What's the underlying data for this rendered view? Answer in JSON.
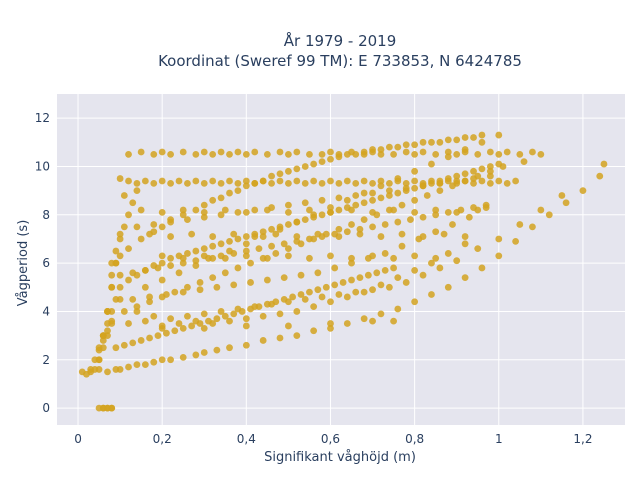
{
  "chart_data": {
    "type": "scatter",
    "title": "År 1979 - 2019",
    "subtitle": "Koordinat (Sweref 99 TM): E 733853, N 6424785",
    "xlabel": "Signifikant våghöjd (m)",
    "ylabel": "Vågperiod (s)",
    "xlim": [
      -0.05,
      1.3
    ],
    "ylim": [
      -0.7,
      13
    ],
    "xticks": [
      0,
      0.2,
      0.4,
      0.6,
      0.8,
      1,
      1.2
    ],
    "xtick_labels": [
      "0",
      "0,2",
      "0,4",
      "0,6",
      "0,8",
      "1",
      "1,2"
    ],
    "yticks": [
      0,
      2,
      4,
      6,
      8,
      10,
      12
    ],
    "ytick_labels": [
      "0",
      "2",
      "4",
      "6",
      "8",
      "10",
      "12"
    ],
    "grid": true,
    "legend": "none",
    "series": [
      {
        "color": "#d4a320",
        "x": [
          0.01,
          0.02,
          0.03,
          0.04,
          0.05,
          0.06,
          0.07,
          0.08,
          0.03,
          0.05,
          0.07,
          0.09,
          0.1,
          0.12,
          0.14,
          0.16,
          0.18,
          0.2,
          0.22,
          0.25,
          0.28,
          0.3,
          0.33,
          0.36,
          0.4,
          0.44,
          0.48,
          0.52,
          0.56,
          0.6,
          0.64,
          0.68,
          0.72,
          0.76,
          0.8,
          0.84,
          0.88,
          0.92,
          0.96,
          1.0,
          1.04,
          1.08,
          1.12,
          1.16,
          1.2,
          1.24,
          1.25,
          0.05,
          0.06,
          0.07,
          0.08,
          0.09,
          0.1,
          0.12,
          0.14,
          0.16,
          0.18,
          0.2,
          0.22,
          0.24,
          0.26,
          0.28,
          0.3,
          0.32,
          0.34,
          0.36,
          0.38,
          0.4,
          0.42,
          0.44,
          0.46,
          0.48,
          0.5,
          0.52,
          0.54,
          0.56,
          0.58,
          0.6,
          0.62,
          0.64,
          0.66,
          0.68,
          0.7,
          0.72,
          0.74,
          0.76,
          0.78,
          0.8,
          0.82,
          0.84,
          0.86,
          0.88,
          0.9,
          0.92,
          0.94,
          0.96,
          0.98,
          1.0,
          0.08,
          0.1,
          0.12,
          0.15,
          0.18,
          0.2,
          0.22,
          0.25,
          0.28,
          0.3,
          0.32,
          0.34,
          0.36,
          0.38,
          0.4,
          0.42,
          0.44,
          0.46,
          0.48,
          0.5,
          0.52,
          0.54,
          0.56,
          0.58,
          0.6,
          0.62,
          0.64,
          0.66,
          0.68,
          0.7,
          0.72,
          0.74,
          0.76,
          0.78,
          0.8,
          0.82,
          0.84,
          0.86,
          0.88,
          0.9,
          0.92,
          0.94,
          0.96,
          0.12,
          0.15,
          0.18,
          0.2,
          0.22,
          0.25,
          0.28,
          0.3,
          0.32,
          0.34,
          0.36,
          0.38,
          0.4,
          0.42,
          0.45,
          0.48,
          0.5,
          0.52,
          0.55,
          0.58,
          0.6,
          0.62,
          0.65,
          0.68,
          0.7,
          0.72,
          0.75,
          0.78,
          0.8,
          0.82,
          0.85,
          0.88,
          0.9,
          0.92,
          0.95,
          0.98,
          1.0,
          1.02,
          1.05,
          1.08,
          1.1,
          0.1,
          0.12,
          0.14,
          0.16,
          0.18,
          0.2,
          0.22,
          0.24,
          0.26,
          0.28,
          0.3,
          0.32,
          0.34,
          0.36,
          0.38,
          0.4,
          0.42,
          0.44,
          0.46,
          0.48,
          0.5,
          0.52,
          0.54,
          0.56,
          0.58,
          0.6,
          0.62,
          0.64,
          0.66,
          0.68,
          0.7,
          0.72,
          0.74,
          0.76,
          0.78,
          0.8,
          0.82,
          0.84,
          0.86,
          0.88,
          0.9,
          0.92,
          0.94,
          0.96,
          0.98,
          1.0,
          1.02,
          1.04,
          0.15,
          0.2,
          0.25,
          0.3,
          0.35,
          0.4,
          0.45,
          0.5,
          0.55,
          0.6,
          0.65,
          0.7,
          0.75,
          0.8,
          0.85,
          0.9,
          0.95,
          0.17,
          0.22,
          0.27,
          0.32,
          0.37,
          0.42,
          0.47,
          0.52,
          0.57,
          0.62,
          0.67,
          0.72,
          0.77,
          0.82,
          0.87,
          0.92,
          0.2,
          0.25,
          0.3,
          0.35,
          0.4,
          0.45,
          0.5,
          0.55,
          0.6,
          0.65,
          0.7,
          0.75,
          0.8,
          0.85,
          0.12,
          0.16,
          0.2,
          0.24,
          0.28,
          0.32,
          0.36,
          0.4,
          0.44,
          0.48,
          0.52,
          0.56,
          0.6,
          0.64,
          0.68,
          0.72,
          0.76,
          0.8,
          0.84,
          0.88,
          0.92,
          0.13,
          0.17,
          0.21,
          0.25,
          0.29,
          0.33,
          0.37,
          0.41,
          0.45,
          0.49,
          0.53,
          0.57,
          0.61,
          0.65,
          0.69,
          0.73,
          0.77,
          0.81,
          0.85,
          0.89,
          0.93,
          0.97,
          0.09,
          0.11,
          0.13,
          0.15,
          0.17,
          0.19,
          0.21,
          0.23,
          0.25,
          0.27,
          0.29,
          0.31,
          0.33,
          0.35,
          0.37,
          0.39,
          0.41,
          0.43,
          0.45,
          0.47,
          0.49,
          0.51,
          0.53,
          0.55,
          0.57,
          0.59,
          0.61,
          0.63,
          0.65,
          0.67,
          0.69,
          0.71,
          0.73,
          0.75,
          0.1,
          0.13,
          0.16,
          0.19,
          0.22,
          0.25,
          0.28,
          0.31,
          0.34,
          0.37,
          0.4,
          0.43,
          0.46,
          0.49,
          0.52,
          0.55,
          0.58,
          0.61,
          0.64,
          0.67,
          0.7,
          0.73,
          0.76,
          0.79,
          0.82,
          0.85,
          0.88,
          0.91,
          0.94,
          0.97,
          0.11,
          0.14,
          0.17,
          0.2,
          0.23,
          0.26,
          0.29,
          0.32,
          0.35,
          0.38,
          0.41,
          0.44,
          0.47,
          0.5,
          0.53,
          0.56,
          0.59,
          0.62,
          0.65,
          0.68,
          0.71,
          0.74,
          0.77,
          0.8,
          0.83,
          0.86,
          0.89,
          0.92,
          0.95,
          0.98,
          1.01,
          1.06,
          0.14,
          0.18,
          0.22,
          0.26,
          0.3,
          0.34,
          0.38,
          0.42,
          0.46,
          0.5,
          0.54,
          0.58,
          0.62,
          0.66,
          0.7,
          0.74,
          0.78,
          0.82,
          0.86,
          0.9,
          0.94,
          0.98,
          0.16,
          0.2,
          0.24,
          0.28,
          0.32,
          0.36,
          0.4,
          0.44,
          0.48,
          0.52,
          0.56,
          0.6,
          0.64,
          0.68,
          0.72,
          0.76,
          0.8,
          0.84,
          0.88,
          0.92,
          0.96,
          1.0,
          0.07,
          0.08,
          0.09,
          0.1,
          0.11,
          0.12,
          0.13,
          0.14,
          0.06,
          0.07,
          0.08,
          0.09,
          0.1,
          0.11,
          0.05,
          0.06,
          0.07,
          0.08,
          0.09,
          0.04,
          0.05,
          0.06,
          0.07,
          0.08,
          0.06,
          0.07,
          0.08,
          0.1,
          0.14,
          0.18,
          0.22,
          0.26,
          0.3,
          0.34,
          0.38,
          0.42,
          0.46,
          0.5,
          0.54,
          0.58,
          0.62,
          0.66,
          0.7,
          0.74,
          0.78,
          0.82,
          0.86,
          0.9,
          0.95,
          1.0,
          1.05,
          1.1,
          1.15,
          0.2,
          0.3,
          0.4,
          0.5,
          0.6,
          0.7,
          0.75,
          0.05,
          0.06,
          0.07,
          0.08
        ],
        "y": [
          1.5,
          1.4,
          1.6,
          2.0,
          2.4,
          2.8,
          3.2,
          3.6,
          1.5,
          1.6,
          1.5,
          1.6,
          1.6,
          1.7,
          1.8,
          1.8,
          1.9,
          2.0,
          2.0,
          2.1,
          2.2,
          2.3,
          2.4,
          2.5,
          2.6,
          2.8,
          2.9,
          3.0,
          3.2,
          3.3,
          3.5,
          3.7,
          3.9,
          4.1,
          4.4,
          4.7,
          5.0,
          5.4,
          5.8,
          6.3,
          6.9,
          7.5,
          8.0,
          8.5,
          9.0,
          9.6,
          10.1,
          2.5,
          3.0,
          3.5,
          4.0,
          4.5,
          5.0,
          5.3,
          5.5,
          5.7,
          5.9,
          6.0,
          6.2,
          6.3,
          6.4,
          6.5,
          6.6,
          6.7,
          6.8,
          6.9,
          7.0,
          7.1,
          7.2,
          7.3,
          7.4,
          7.5,
          7.6,
          7.7,
          7.8,
          7.9,
          8.0,
          8.1,
          8.2,
          8.3,
          8.4,
          8.5,
          8.6,
          8.7,
          8.8,
          8.9,
          9.0,
          9.1,
          9.2,
          9.3,
          9.4,
          9.5,
          9.6,
          9.7,
          9.8,
          9.9,
          10.0,
          10.1,
          6.0,
          6.3,
          6.6,
          7.0,
          7.3,
          7.5,
          7.8,
          8.0,
          8.2,
          8.4,
          8.6,
          8.7,
          8.9,
          9.0,
          9.2,
          9.3,
          9.4,
          9.6,
          9.7,
          9.8,
          9.9,
          10.0,
          10.1,
          10.2,
          10.3,
          10.4,
          10.5,
          10.5,
          10.6,
          10.7,
          10.7,
          10.8,
          10.8,
          10.9,
          10.9,
          11.0,
          11.0,
          11.0,
          11.1,
          11.1,
          11.2,
          11.2,
          11.3,
          10.5,
          10.6,
          10.5,
          10.6,
          10.5,
          10.6,
          10.5,
          10.6,
          10.5,
          10.6,
          10.5,
          10.6,
          10.5,
          10.6,
          10.5,
          10.6,
          10.5,
          10.6,
          10.5,
          10.5,
          10.6,
          10.5,
          10.6,
          10.5,
          10.6,
          10.5,
          10.5,
          10.6,
          10.5,
          10.6,
          10.5,
          10.6,
          10.5,
          10.6,
          10.5,
          10.6,
          10.5,
          10.6,
          10.5,
          10.6,
          10.5,
          9.5,
          9.4,
          9.3,
          9.4,
          9.3,
          9.4,
          9.3,
          9.4,
          9.3,
          9.4,
          9.3,
          9.4,
          9.3,
          9.4,
          9.3,
          9.4,
          9.3,
          9.4,
          9.3,
          9.4,
          9.3,
          9.4,
          9.3,
          9.4,
          9.3,
          9.4,
          9.3,
          9.4,
          9.3,
          9.4,
          9.3,
          9.4,
          9.3,
          9.4,
          9.3,
          9.4,
          9.3,
          9.4,
          9.3,
          9.4,
          9.3,
          9.4,
          9.3,
          9.4,
          9.3,
          9.4,
          9.3,
          9.4,
          8.2,
          8.1,
          8.2,
          8.1,
          8.2,
          8.1,
          8.2,
          8.1,
          8.2,
          8.1,
          8.2,
          8.1,
          8.2,
          8.1,
          8.2,
          8.1,
          8.2,
          7.2,
          7.1,
          7.2,
          7.1,
          7.2,
          7.1,
          7.2,
          7.1,
          7.2,
          7.1,
          7.2,
          7.1,
          7.2,
          7.1,
          7.2,
          7.1,
          6.3,
          6.2,
          6.3,
          6.2,
          6.3,
          6.2,
          6.3,
          6.2,
          6.3,
          6.2,
          6.3,
          6.2,
          6.3,
          6.2,
          3.5,
          3.6,
          3.4,
          3.5,
          3.6,
          3.5,
          3.6,
          3.7,
          3.8,
          3.9,
          4.0,
          4.2,
          4.4,
          4.6,
          4.8,
          5.1,
          5.4,
          5.7,
          6.0,
          6.4,
          6.8,
          4.5,
          4.6,
          4.7,
          4.8,
          4.9,
          5.0,
          5.1,
          5.2,
          5.3,
          5.4,
          5.5,
          5.6,
          5.8,
          6.0,
          6.2,
          6.4,
          6.7,
          7.0,
          7.3,
          7.6,
          7.9,
          8.3,
          2.5,
          2.6,
          2.7,
          2.8,
          2.9,
          3.0,
          3.1,
          3.2,
          3.3,
          3.4,
          3.5,
          3.6,
          3.7,
          3.8,
          3.9,
          4.0,
          4.1,
          4.2,
          4.3,
          4.4,
          4.5,
          4.6,
          4.7,
          4.8,
          4.9,
          5.0,
          5.1,
          5.2,
          5.3,
          5.4,
          5.5,
          5.6,
          5.7,
          5.8,
          5.5,
          5.6,
          5.7,
          5.8,
          5.9,
          6.0,
          6.1,
          6.2,
          6.3,
          6.4,
          6.5,
          6.6,
          6.7,
          6.8,
          6.9,
          7.0,
          7.1,
          7.2,
          7.3,
          7.4,
          7.5,
          7.6,
          7.7,
          7.8,
          7.9,
          8.0,
          8.1,
          8.2,
          8.3,
          8.4,
          4.0,
          4.2,
          4.4,
          4.6,
          4.8,
          5.0,
          5.2,
          5.4,
          5.6,
          5.8,
          6.0,
          6.2,
          6.4,
          6.6,
          6.8,
          7.0,
          7.2,
          7.4,
          7.6,
          7.8,
          8.0,
          8.2,
          8.4,
          8.6,
          8.8,
          9.0,
          9.2,
          9.4,
          9.6,
          9.8,
          10.0,
          10.2,
          7.5,
          7.6,
          7.7,
          7.8,
          7.9,
          8.0,
          8.1,
          8.2,
          8.3,
          8.4,
          8.5,
          8.6,
          8.7,
          8.8,
          8.9,
          9.0,
          9.1,
          9.2,
          9.3,
          9.4,
          9.5,
          9.6,
          5.0,
          5.3,
          5.6,
          5.9,
          6.2,
          6.5,
          6.8,
          7.1,
          7.4,
          7.7,
          8.0,
          8.3,
          8.6,
          8.9,
          9.2,
          9.5,
          9.8,
          10.1,
          10.4,
          10.7,
          11.0,
          11.3,
          4.0,
          5.0,
          6.0,
          7.0,
          7.5,
          8.0,
          8.5,
          9.0,
          3.0,
          4.0,
          5.5,
          6.5,
          7.2,
          8.8,
          2.0,
          3.0,
          4.0,
          5.0,
          6.0,
          1.6,
          2.0,
          2.5,
          3.0,
          3.5,
          0.0,
          0.0,
          0.0,
          4.5,
          4.0,
          3.8,
          3.7,
          3.8,
          3.9,
          4.0,
          4.1,
          4.2,
          4.3,
          4.4,
          4.5,
          4.6,
          4.7,
          4.8,
          4.9,
          5.0,
          5.2,
          5.5,
          5.8,
          6.1,
          6.6,
          7.0,
          7.6,
          8.2,
          8.8,
          3.3,
          3.3,
          3.4,
          3.4,
          3.5,
          3.6,
          3.6,
          0.0,
          0.0,
          0.0,
          0.0
        ]
      }
    ]
  }
}
